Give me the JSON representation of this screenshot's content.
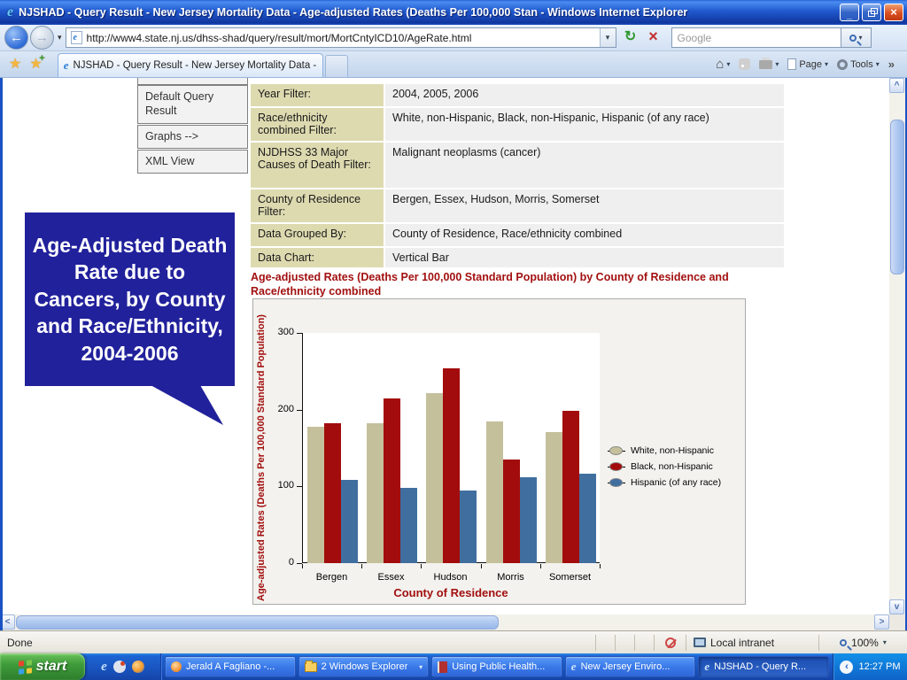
{
  "window": {
    "title": "NJSHAD - Query Result - New Jersey Mortality Data - Age-adjusted Rates (Deaths Per 100,000 Stan - Windows Internet Explorer"
  },
  "address_bar": {
    "url": "http://www4.state.nj.us/dhss-shad/query/result/mort/MortCntyICD10/AgeRate.html",
    "search_placeholder": "Google"
  },
  "tab": {
    "title": "NJSHAD - Query Result - New Jersey Mortality Data - ..."
  },
  "toolbar": {
    "page_label": "Page",
    "tools_label": "Tools"
  },
  "icons": {
    "back_arrow": "←",
    "forward_arrow": "→",
    "dropdown": "▾",
    "star": "★",
    "home": "⌂",
    "refresh": "↻",
    "stop": "×",
    "close": "×",
    "overflow": "»",
    "tray_chevron": "‹",
    "scroll_up": "▲",
    "scroll_down": "▼",
    "scroll_left": "◄",
    "scroll_right": "►",
    "ie_e": "e"
  },
  "sidebar": {
    "items": [
      {
        "label": "Default Query Result"
      },
      {
        "label": "Graphs -->"
      },
      {
        "label": "XML View"
      }
    ]
  },
  "callout": {
    "text": "Age-Adjusted Death Rate due to Cancers, by County and Race/Ethnicity, 2004-2006",
    "bg": "#21219c"
  },
  "query_table": {
    "rows": [
      {
        "label": "Year Filter:",
        "value": "2004, 2005, 2006"
      },
      {
        "label": "Race/ethnicity combined Filter:",
        "value": "White, non-Hispanic, Black, non-Hispanic, Hispanic (of any race)"
      },
      {
        "label": "NJDHSS 33 Major Causes of Death Filter:",
        "value": "Malignant neoplasms (cancer)"
      },
      {
        "label": "County of Residence Filter:",
        "value": "Bergen, Essex, Hudson, Morris, Somerset"
      },
      {
        "label": "Data Grouped By:",
        "value": "County of Residence, Race/ethnicity combined"
      },
      {
        "label": "Data Chart:",
        "value": "Vertical Bar"
      }
    ]
  },
  "chart_heading": "Age-adjusted Rates (Deaths Per 100,000 Standard Population) by County of Residence and Race/ethnicity combined",
  "chart_data": {
    "type": "bar",
    "title": "",
    "categories": [
      "Bergen",
      "Essex",
      "Hudson",
      "Morris",
      "Somerset"
    ],
    "series": [
      {
        "name": "White, non-Hispanic",
        "color": "#c5c09c",
        "values": [
          178,
          182,
          222,
          185,
          171
        ]
      },
      {
        "name": "Black, non-Hispanic",
        "color": "#a30c0c",
        "values": [
          182,
          215,
          254,
          135,
          199
        ]
      },
      {
        "name": "Hispanic (of any race)",
        "color": "#406f9f",
        "values": [
          109,
          98,
          95,
          112,
          117
        ]
      }
    ],
    "xlabel": "County of Residence",
    "ylabel": "Age-adjusted Rates (Deaths Per 100,000 Standard Population)",
    "ylim": [
      0,
      300
    ],
    "yticks": [
      0,
      100,
      200,
      300
    ],
    "legend_position": "right",
    "grid": false
  },
  "status_bar": {
    "text": "Done",
    "zone": "Local intranet",
    "zoom": "100%"
  },
  "taskbar": {
    "start_label": "start",
    "buttons": [
      {
        "label": "Jerald A Fagliano -..."
      },
      {
        "label": "2 Windows Explorer"
      },
      {
        "label": "Using Public Health..."
      },
      {
        "label": "New Jersey Enviro..."
      },
      {
        "label": "NJSHAD - Query R..."
      }
    ],
    "clock": "12:27 PM"
  }
}
